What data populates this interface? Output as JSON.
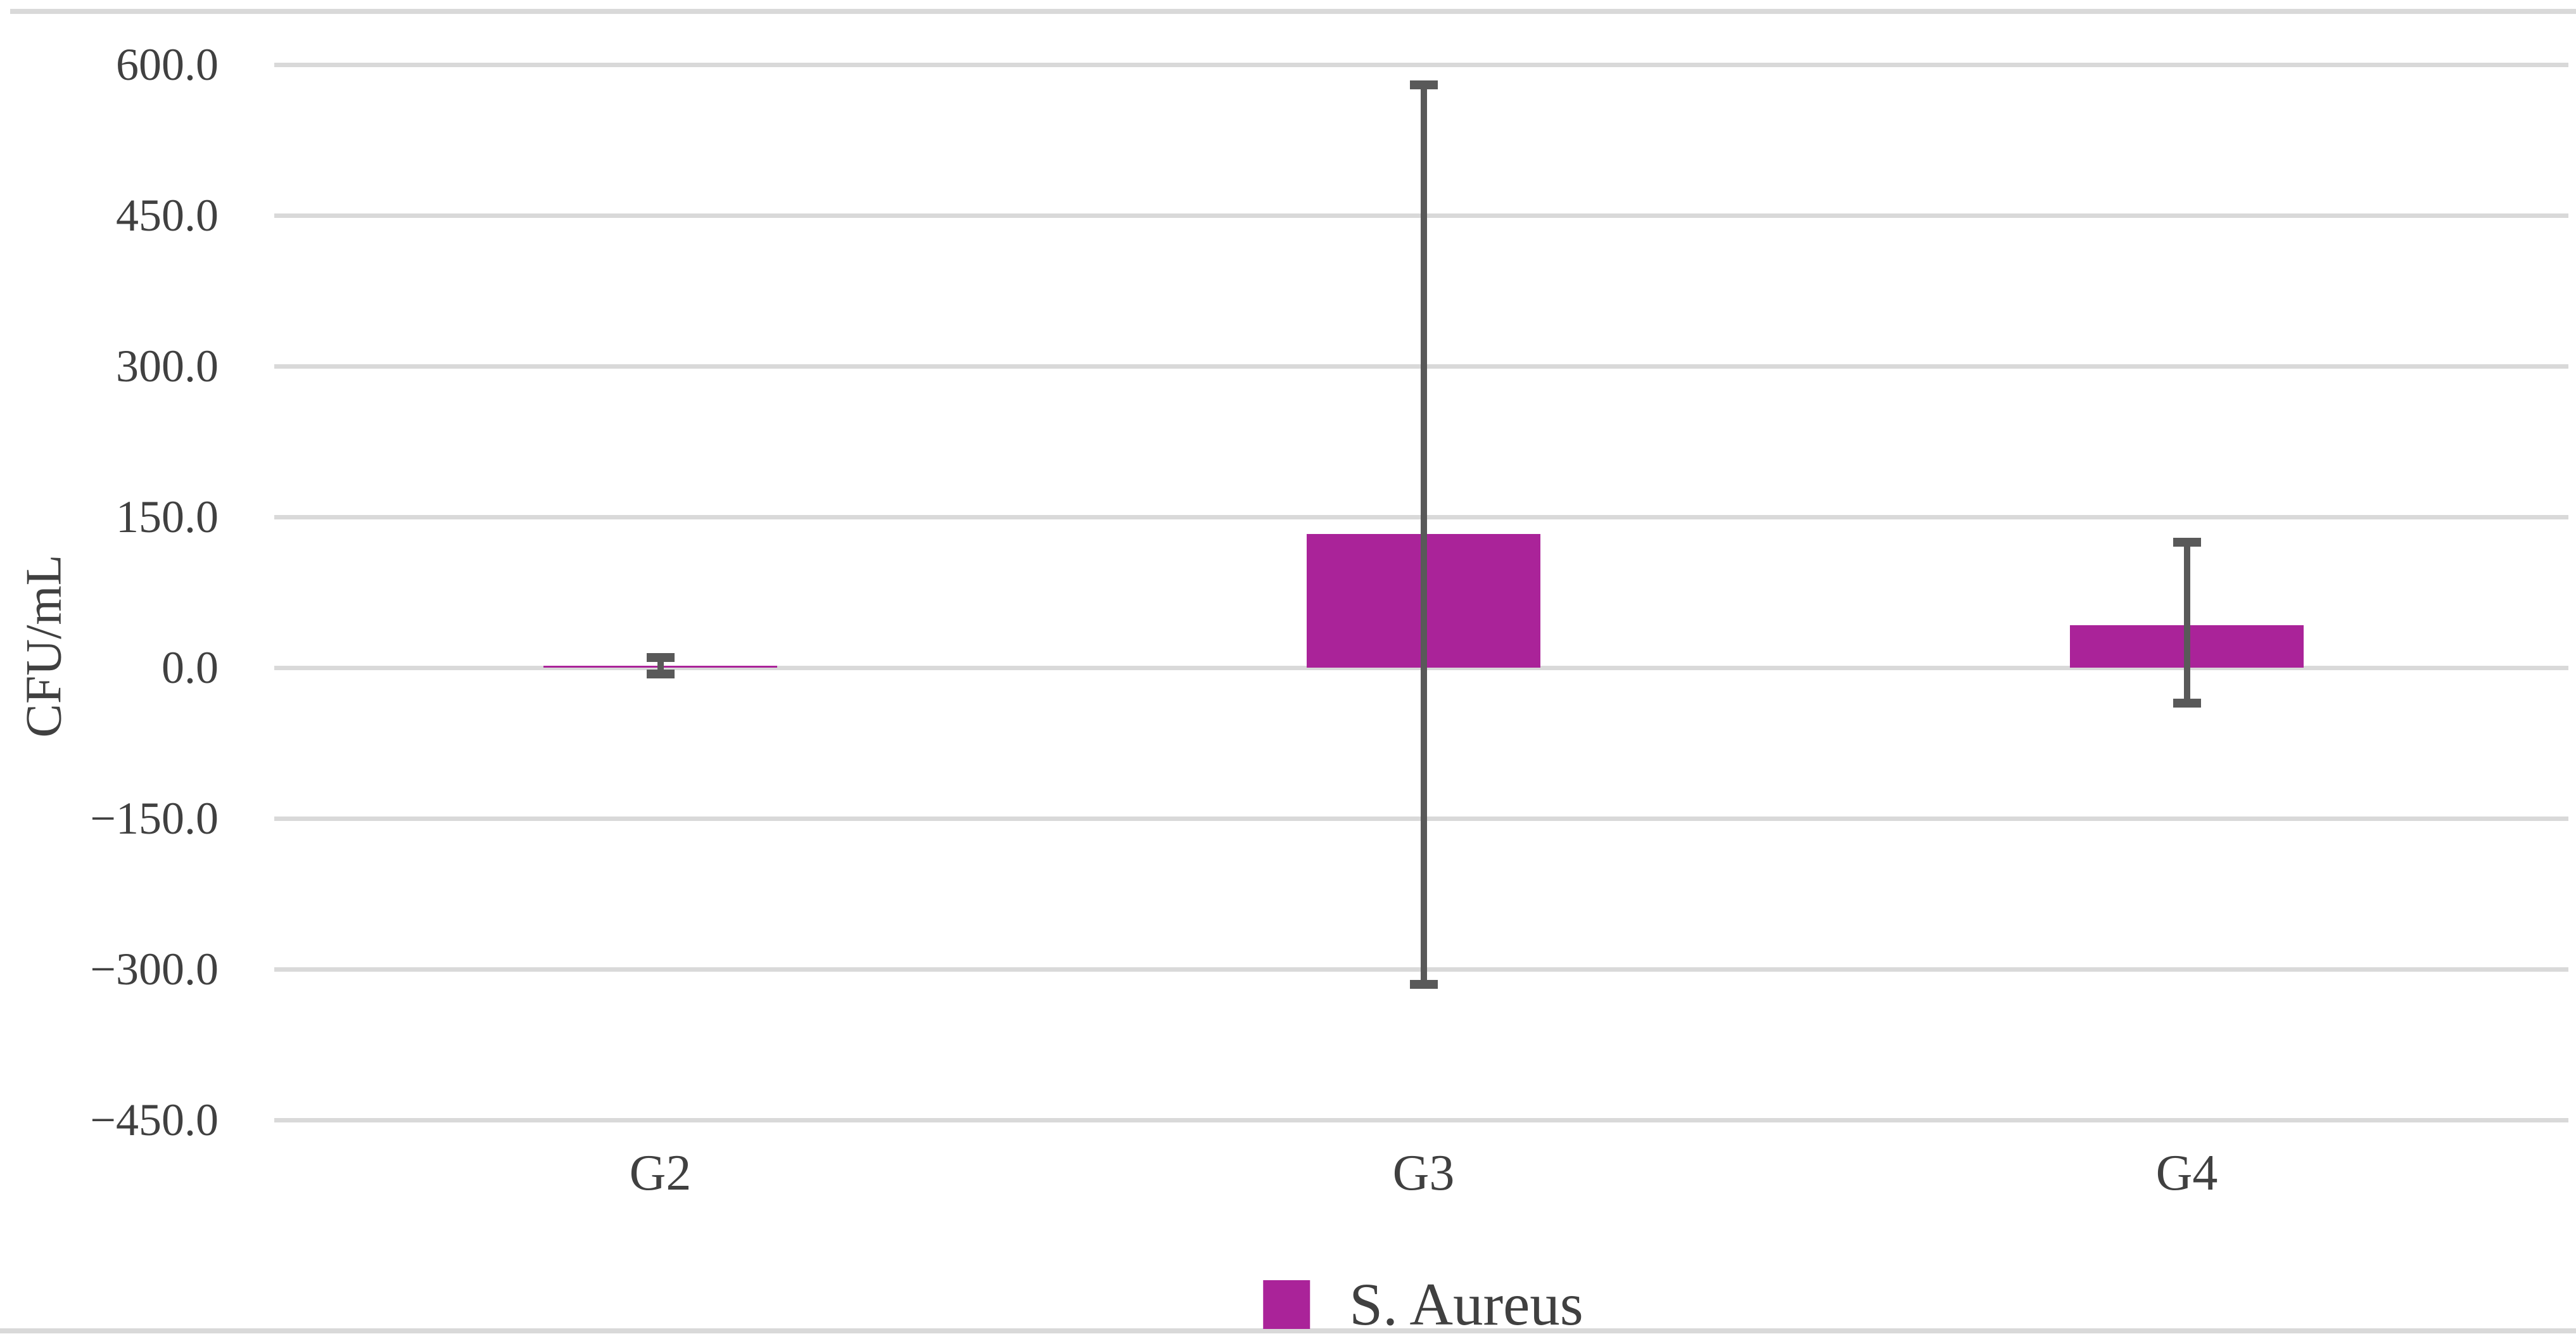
{
  "chart_data": {
    "type": "bar",
    "ylabel": "CFU/mL",
    "xlabel": "",
    "categories": [
      "G2",
      "G3",
      "G4"
    ],
    "series": [
      {
        "name": "S. Aureus",
        "color": "#AA2399",
        "values": [
          2,
          133,
          42
        ],
        "error_bars": [
          {
            "min": -6,
            "max": 10
          },
          {
            "min": -315,
            "max": 580
          },
          {
            "min": -35,
            "max": 125
          }
        ]
      }
    ],
    "y_axis": {
      "min": -450,
      "max": 600,
      "step": 150,
      "tick_labels": [
        "600.0",
        "450.0",
        "300.0",
        "150.0",
        "0.0",
        "−150.0",
        "−300.0",
        "−450.0"
      ]
    },
    "grid": true,
    "legend_position": "bottom",
    "colors": {
      "bar": "#AA2399",
      "error_bar": "#595959",
      "gridline": "#D9D9D9",
      "chart_border": "#D9D9D9",
      "text": "#404040"
    }
  }
}
